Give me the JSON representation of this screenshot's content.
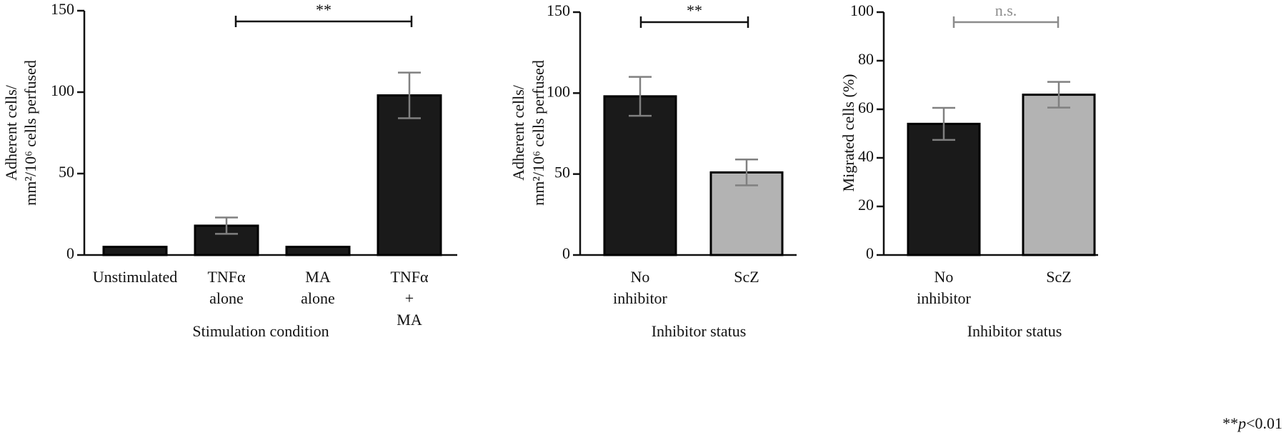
{
  "chart_data": [
    {
      "type": "bar",
      "ylabel": [
        "Adherent cells/",
        "mm²/10⁶ cells perfused"
      ],
      "xlabel": "Stimulation condition",
      "categories": [
        [
          "Unstimulated"
        ],
        [
          "TNFα",
          "alone"
        ],
        [
          "MA",
          "alone"
        ],
        [
          "TNFα",
          "+",
          "MA"
        ]
      ],
      "values": [
        5,
        18,
        5,
        98
      ],
      "errors": [
        null,
        5,
        null,
        14
      ],
      "colors": [
        "#1a1a1a",
        "#1a1a1a",
        "#1a1a1a",
        "#1a1a1a"
      ],
      "error_color": "#808080",
      "ylim": [
        0,
        150
      ],
      "yticks": [
        0,
        50,
        100,
        150
      ],
      "annotation": "**",
      "annotation_color": "#111"
    },
    {
      "type": "bar",
      "ylabel": [
        "Adherent cells/",
        "mm²/10⁶ cells perfused"
      ],
      "xlabel": "Inhibitor status",
      "categories": [
        [
          "No",
          "inhibitor"
        ],
        [
          "ScZ"
        ]
      ],
      "values": [
        98,
        51
      ],
      "errors": [
        12,
        8
      ],
      "colors": [
        "#1a1a1a",
        "#b3b3b3"
      ],
      "error_color": "#808080",
      "ylim": [
        0,
        150
      ],
      "yticks": [
        0,
        50,
        100,
        150
      ],
      "annotation": "**",
      "annotation_color": "#111"
    },
    {
      "type": "bar",
      "ylabel": [
        "Migrated cells (%)"
      ],
      "xlabel": "Inhibitor status",
      "categories": [
        [
          "No",
          "inhibitor"
        ],
        [
          "ScZ"
        ]
      ],
      "values": [
        54,
        66
      ],
      "errors": [
        6.6,
        5.3
      ],
      "colors": [
        "#1a1a1a",
        "#b3b3b3"
      ],
      "error_color": "#808080",
      "ylim": [
        0,
        100
      ],
      "yticks": [
        0,
        20,
        40,
        60,
        80,
        100
      ],
      "annotation": "n.s.",
      "annotation_color": "#8c8c8c"
    }
  ],
  "footnote": [
    "**",
    "p",
    "<0.01"
  ]
}
